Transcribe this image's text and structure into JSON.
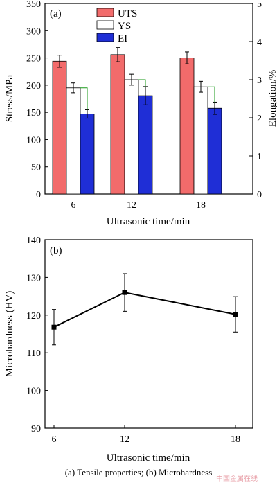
{
  "caption": "(a)  Tensile  properties; (b) Microhardness",
  "watermark": "中国金属在线",
  "chart_data": [
    {
      "type": "bar",
      "panel_label": "(a)",
      "categories": [
        "6",
        "12",
        "18"
      ],
      "xlabel": "Ultrasonic time/min",
      "ylabel": "Stress/MPa",
      "y2label": "Elongation/%",
      "ylim": [
        0,
        350
      ],
      "yticks": [
        "0",
        "50",
        "100",
        "150",
        "200",
        "250",
        "300",
        "350"
      ],
      "y2lim": [
        0,
        5
      ],
      "y2ticks": [
        "0",
        "1",
        "2",
        "3",
        "4",
        "5"
      ],
      "legend_position": "top-center",
      "series": [
        {
          "name": "UTS",
          "axis": "left",
          "values": [
            244,
            256,
            250
          ],
          "errors": [
            11,
            13,
            11
          ],
          "color": "#f26b6b"
        },
        {
          "name": "YS",
          "axis": "left",
          "values": [
            195,
            210,
            197
          ],
          "errors": [
            9,
            10,
            10
          ],
          "color": "#ffffff"
        },
        {
          "name": "EI",
          "axis": "right",
          "values": [
            2.1,
            2.58,
            2.25
          ],
          "errors": [
            0.11,
            0.24,
            0.16
          ],
          "color": "#1f2ed6"
        }
      ],
      "connector_color": "#1a9a1a"
    },
    {
      "type": "line",
      "panel_label": "(b)",
      "x": [
        6,
        12,
        18
      ],
      "xticks": [
        "6",
        "12",
        "18"
      ],
      "y": [
        116.8,
        126,
        120.2
      ],
      "errors": [
        4.7,
        5,
        4.7
      ],
      "xlabel": "Ultrasonic time/min",
      "ylabel": "Microhardness (HV)",
      "ylim": [
        90,
        140
      ],
      "yticks": [
        "90",
        "100",
        "110",
        "120",
        "130",
        "140"
      ],
      "marker": "square"
    }
  ]
}
